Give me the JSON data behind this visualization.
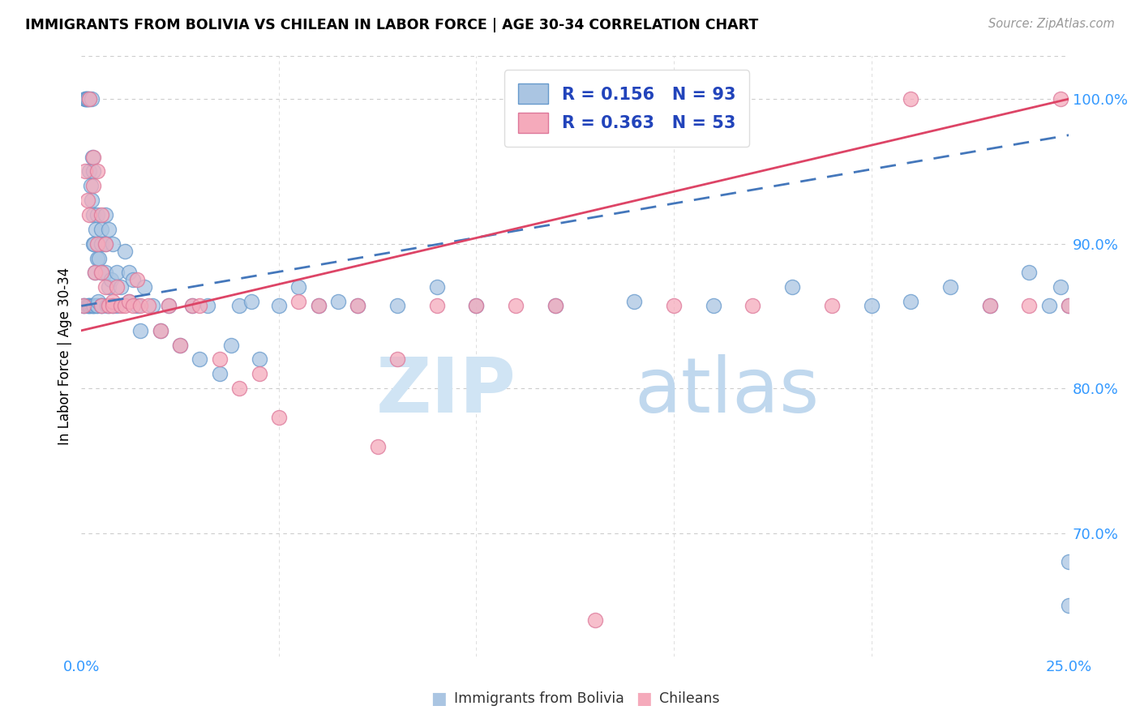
{
  "title": "IMMIGRANTS FROM BOLIVIA VS CHILEAN IN LABOR FORCE | AGE 30-34 CORRELATION CHART",
  "source": "Source: ZipAtlas.com",
  "ylabel": "In Labor Force | Age 30-34",
  "ytick_labels": [
    "100.0%",
    "90.0%",
    "80.0%",
    "70.0%"
  ],
  "ytick_values": [
    1.0,
    0.9,
    0.8,
    0.7
  ],
  "xlim": [
    0.0,
    0.25
  ],
  "ylim": [
    0.615,
    1.03
  ],
  "bolivia_color": "#aac5e2",
  "bolivia_edge_color": "#6699cc",
  "chilean_color": "#f5aabb",
  "chilean_edge_color": "#dd7799",
  "bolivia_line_color": "#4477bb",
  "chilean_line_color": "#dd4466",
  "legend_bolivia_label": "R = 0.156   N = 93",
  "legend_chilean_label": "R = 0.363   N = 53",
  "legend_text_color": "#2244bb",
  "watermark_zip": "ZIP",
  "watermark_atlas": "atlas",
  "bottom_label_bolivia": "Immigrants from Bolivia",
  "bottom_label_chilean": "Chileans",
  "bolivia_x": [
    0.0005,
    0.0008,
    0.001,
    0.001,
    0.0012,
    0.0013,
    0.0015,
    0.0015,
    0.0016,
    0.0018,
    0.002,
    0.002,
    0.002,
    0.0022,
    0.0023,
    0.0025,
    0.0025,
    0.0026,
    0.0027,
    0.003,
    0.003,
    0.003,
    0.003,
    0.003,
    0.0032,
    0.0033,
    0.0035,
    0.0036,
    0.0038,
    0.004,
    0.004,
    0.004,
    0.0042,
    0.0045,
    0.005,
    0.005,
    0.005,
    0.005,
    0.005,
    0.006,
    0.006,
    0.006,
    0.0065,
    0.007,
    0.007,
    0.007,
    0.0075,
    0.008,
    0.008,
    0.009,
    0.009,
    0.01,
    0.011,
    0.012,
    0.012,
    0.013,
    0.014,
    0.015,
    0.016,
    0.018,
    0.02,
    0.022,
    0.025,
    0.028,
    0.03,
    0.032,
    0.035,
    0.038,
    0.04,
    0.043,
    0.045,
    0.05,
    0.055,
    0.06,
    0.065,
    0.07,
    0.08,
    0.09,
    0.1,
    0.12,
    0.14,
    0.16,
    0.18,
    0.2,
    0.21,
    0.22,
    0.23,
    0.24,
    0.245,
    0.248,
    0.25,
    0.25,
    0.25
  ],
  "bolivia_y": [
    0.857,
    0.857,
    1.0,
    1.0,
    1.0,
    1.0,
    1.0,
    0.857,
    1.0,
    0.857,
    0.857,
    0.95,
    1.0,
    0.857,
    0.94,
    0.857,
    1.0,
    0.93,
    0.96,
    0.857,
    0.9,
    0.92,
    0.95,
    0.857,
    0.857,
    0.9,
    0.88,
    0.91,
    0.857,
    0.857,
    0.92,
    0.89,
    0.86,
    0.89,
    0.857,
    0.91,
    0.88,
    0.9,
    0.857,
    0.9,
    0.88,
    0.92,
    0.857,
    0.87,
    0.91,
    0.857,
    0.875,
    0.857,
    0.9,
    0.88,
    0.857,
    0.87,
    0.895,
    0.88,
    0.86,
    0.875,
    0.857,
    0.84,
    0.87,
    0.857,
    0.84,
    0.857,
    0.83,
    0.857,
    0.82,
    0.857,
    0.81,
    0.83,
    0.857,
    0.86,
    0.82,
    0.857,
    0.87,
    0.857,
    0.86,
    0.857,
    0.857,
    0.87,
    0.857,
    0.857,
    0.86,
    0.857,
    0.87,
    0.857,
    0.86,
    0.87,
    0.857,
    0.88,
    0.857,
    0.87,
    0.857,
    0.65,
    0.68
  ],
  "chilean_x": [
    0.0005,
    0.001,
    0.0015,
    0.002,
    0.002,
    0.003,
    0.003,
    0.0035,
    0.004,
    0.004,
    0.005,
    0.005,
    0.005,
    0.006,
    0.006,
    0.007,
    0.008,
    0.008,
    0.009,
    0.01,
    0.011,
    0.012,
    0.013,
    0.014,
    0.015,
    0.017,
    0.02,
    0.022,
    0.025,
    0.028,
    0.03,
    0.035,
    0.04,
    0.045,
    0.05,
    0.055,
    0.06,
    0.07,
    0.075,
    0.08,
    0.09,
    0.1,
    0.11,
    0.12,
    0.13,
    0.15,
    0.17,
    0.19,
    0.21,
    0.23,
    0.24,
    0.248,
    0.25
  ],
  "chilean_y": [
    0.857,
    0.95,
    0.93,
    0.92,
    1.0,
    0.94,
    0.96,
    0.88,
    0.9,
    0.95,
    0.88,
    0.92,
    0.857,
    0.9,
    0.87,
    0.857,
    0.86,
    0.857,
    0.87,
    0.857,
    0.857,
    0.86,
    0.857,
    0.875,
    0.857,
    0.857,
    0.84,
    0.857,
    0.83,
    0.857,
    0.857,
    0.82,
    0.8,
    0.81,
    0.78,
    0.86,
    0.857,
    0.857,
    0.76,
    0.82,
    0.857,
    0.857,
    0.857,
    0.857,
    0.64,
    0.857,
    0.857,
    0.857,
    1.0,
    0.857,
    0.857,
    1.0,
    0.857
  ],
  "bolivia_line_x0": 0.0,
  "bolivia_line_y0": 0.857,
  "bolivia_line_x1": 0.25,
  "bolivia_line_y1": 0.975,
  "chilean_line_x0": 0.0,
  "chilean_line_y0": 0.84,
  "chilean_line_x1": 0.25,
  "chilean_line_y1": 1.0
}
